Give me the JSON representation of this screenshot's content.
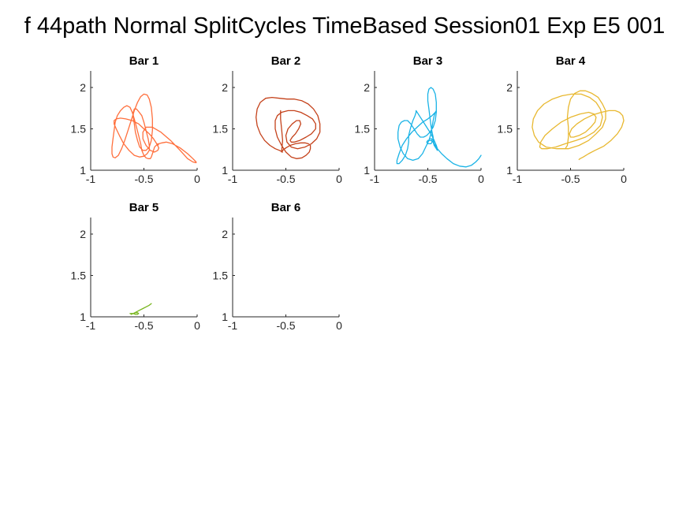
{
  "figure": {
    "title": "f 44path Normal SplitCycles TimeBased Session01 Exp E5 001"
  },
  "chart_data": [
    {
      "type": "line",
      "title": "Bar 1",
      "color": "#ff6f3c",
      "xlim": [
        -1,
        0
      ],
      "ylim": [
        1,
        2.2
      ],
      "xticks": [
        "-1",
        "-0.5",
        "0"
      ],
      "yticks": [
        "1",
        "1.5",
        "2"
      ],
      "grid": false,
      "x": [
        -0.37,
        -0.4,
        -0.41,
        -0.42,
        -0.43,
        -0.44,
        -0.46,
        -0.48,
        -0.5,
        -0.52,
        -0.53,
        -0.55,
        -0.57,
        -0.59,
        -0.61,
        -0.63,
        -0.66,
        -0.69,
        -0.72,
        -0.75,
        -0.77,
        -0.78,
        -0.79,
        -0.8,
        -0.8,
        -0.79,
        -0.77,
        -0.74,
        -0.71,
        -0.68,
        -0.65,
        -0.62,
        -0.59,
        -0.56,
        -0.53,
        -0.5,
        -0.47,
        -0.45,
        -0.43,
        -0.42,
        -0.42,
        -0.43,
        -0.45,
        -0.48,
        -0.51,
        -0.54,
        -0.56,
        -0.58,
        -0.59,
        -0.6,
        -0.6,
        -0.59,
        -0.57,
        -0.55,
        -0.52,
        -0.5,
        -0.48,
        -0.46,
        -0.45,
        -0.45,
        -0.47,
        -0.5,
        -0.54,
        -0.59,
        -0.64,
        -0.69,
        -0.73,
        -0.76,
        -0.78,
        -0.78,
        -0.76,
        -0.72,
        -0.67,
        -0.61,
        -0.55,
        -0.5,
        -0.45,
        -0.41,
        -0.38,
        -0.36,
        -0.37,
        -0.4,
        -0.44,
        -0.48,
        -0.51,
        -0.51,
        -0.48,
        -0.42,
        -0.34,
        -0.25,
        -0.16,
        -0.09,
        -0.04,
        -0.01,
        -0.01,
        -0.04,
        -0.09,
        -0.16,
        -0.23,
        -0.29,
        -0.33,
        -0.36,
        -0.37
      ],
      "y": [
        1.32,
        1.28,
        1.24,
        1.2,
        1.16,
        1.14,
        1.14,
        1.15,
        1.18,
        1.24,
        1.32,
        1.42,
        1.52,
        1.62,
        1.7,
        1.76,
        1.78,
        1.76,
        1.72,
        1.66,
        1.58,
        1.48,
        1.38,
        1.28,
        1.2,
        1.16,
        1.15,
        1.18,
        1.26,
        1.36,
        1.48,
        1.6,
        1.72,
        1.82,
        1.89,
        1.92,
        1.91,
        1.86,
        1.76,
        1.62,
        1.48,
        1.36,
        1.28,
        1.24,
        1.24,
        1.28,
        1.36,
        1.46,
        1.56,
        1.64,
        1.7,
        1.74,
        1.74,
        1.71,
        1.66,
        1.58,
        1.48,
        1.38,
        1.3,
        1.24,
        1.2,
        1.17,
        1.16,
        1.18,
        1.24,
        1.32,
        1.42,
        1.5,
        1.56,
        1.6,
        1.62,
        1.63,
        1.62,
        1.6,
        1.56,
        1.5,
        1.44,
        1.38,
        1.32,
        1.27,
        1.24,
        1.22,
        1.24,
        1.3,
        1.38,
        1.46,
        1.52,
        1.52,
        1.46,
        1.36,
        1.24,
        1.14,
        1.1,
        1.09,
        1.1,
        1.14,
        1.2,
        1.27,
        1.32,
        1.34,
        1.33,
        1.32,
        1.3
      ]
    },
    {
      "type": "line",
      "title": "Bar 2",
      "color": "#c4411a",
      "xlim": [
        -1,
        0
      ],
      "ylim": [
        1,
        2.2
      ],
      "xticks": [
        "-1",
        "-0.5",
        "0"
      ],
      "yticks": [
        "1",
        "1.5",
        "2"
      ],
      "grid": false,
      "x": [
        -0.53,
        -0.56,
        -0.6,
        -0.65,
        -0.7,
        -0.74,
        -0.77,
        -0.78,
        -0.77,
        -0.74,
        -0.69,
        -0.63,
        -0.56,
        -0.49,
        -0.42,
        -0.35,
        -0.29,
        -0.24,
        -0.2,
        -0.18,
        -0.18,
        -0.21,
        -0.26,
        -0.32,
        -0.39,
        -0.45,
        -0.49,
        -0.5,
        -0.48,
        -0.44,
        -0.4,
        -0.37,
        -0.36,
        -0.38,
        -0.41,
        -0.44,
        -0.46,
        -0.45,
        -0.42,
        -0.37,
        -0.31,
        -0.26,
        -0.22,
        -0.22,
        -0.25,
        -0.3,
        -0.36,
        -0.42,
        -0.48,
        -0.54,
        -0.58,
        -0.6,
        -0.6,
        -0.58,
        -0.54,
        -0.5,
        -0.45,
        -0.4,
        -0.35,
        -0.31,
        -0.28,
        -0.27,
        -0.27,
        -0.29,
        -0.32,
        -0.36,
        -0.41,
        -0.46,
        -0.5,
        -0.53,
        -0.54,
        -0.54,
        -0.53,
        -0.54,
        -0.55,
        -0.55
      ],
      "y": [
        1.22,
        1.24,
        1.26,
        1.3,
        1.36,
        1.44,
        1.54,
        1.64,
        1.74,
        1.82,
        1.87,
        1.88,
        1.87,
        1.86,
        1.86,
        1.84,
        1.8,
        1.74,
        1.66,
        1.56,
        1.46,
        1.38,
        1.32,
        1.28,
        1.26,
        1.28,
        1.34,
        1.42,
        1.5,
        1.56,
        1.6,
        1.6,
        1.56,
        1.5,
        1.44,
        1.4,
        1.36,
        1.34,
        1.34,
        1.36,
        1.4,
        1.44,
        1.5,
        1.56,
        1.62,
        1.66,
        1.7,
        1.72,
        1.72,
        1.7,
        1.66,
        1.6,
        1.5,
        1.4,
        1.3,
        1.22,
        1.16,
        1.14,
        1.15,
        1.18,
        1.22,
        1.26,
        1.3,
        1.32,
        1.33,
        1.33,
        1.32,
        1.3,
        1.27,
        1.24,
        1.22,
        1.22,
        1.36,
        1.5,
        1.62,
        1.72
      ]
    },
    {
      "type": "line",
      "title": "Bar 3",
      "color": "#1ab3e6",
      "xlim": [
        -1,
        0
      ],
      "ylim": [
        1,
        2.2
      ],
      "xticks": [
        "-1",
        "-0.5",
        "0"
      ],
      "yticks": [
        "1",
        "1.5",
        "2"
      ],
      "grid": false,
      "x": [
        0,
        -0.02,
        -0.05,
        -0.09,
        -0.14,
        -0.2,
        -0.26,
        -0.32,
        -0.37,
        -0.41,
        -0.44,
        -0.45,
        -0.45,
        -0.46,
        -0.47,
        -0.48,
        -0.49,
        -0.5,
        -0.5,
        -0.49,
        -0.47,
        -0.45,
        -0.43,
        -0.42,
        -0.42,
        -0.43,
        -0.45,
        -0.48,
        -0.51,
        -0.54,
        -0.57,
        -0.6,
        -0.63,
        -0.66,
        -0.69,
        -0.72,
        -0.75,
        -0.77,
        -0.78,
        -0.78,
        -0.76,
        -0.73,
        -0.69,
        -0.64,
        -0.59,
        -0.55,
        -0.52,
        -0.49,
        -0.47,
        -0.46,
        -0.45,
        -0.44,
        -0.43,
        -0.42,
        -0.42,
        -0.43,
        -0.46,
        -0.5,
        -0.55,
        -0.6,
        -0.65,
        -0.7,
        -0.74,
        -0.77,
        -0.79,
        -0.79,
        -0.77,
        -0.74,
        -0.71,
        -0.69,
        -0.68,
        -0.68,
        -0.66,
        -0.64,
        -0.62,
        -0.61,
        -0.61,
        -0.61,
        -0.6,
        -0.58,
        -0.55,
        -0.51,
        -0.47,
        -0.44,
        -0.42,
        -0.41,
        -0.41,
        -0.42,
        -0.44,
        -0.45,
        -0.47,
        -0.5,
        -0.51,
        -0.5,
        -0.47,
        -0.46,
        -0.46,
        -0.48
      ],
      "y": [
        1.18,
        1.14,
        1.1,
        1.06,
        1.04,
        1.05,
        1.08,
        1.14,
        1.2,
        1.26,
        1.32,
        1.36,
        1.4,
        1.46,
        1.54,
        1.64,
        1.74,
        1.84,
        1.92,
        1.98,
        2,
        1.98,
        1.92,
        1.82,
        1.7,
        1.6,
        1.52,
        1.46,
        1.42,
        1.4,
        1.4,
        1.44,
        1.5,
        1.56,
        1.6,
        1.6,
        1.58,
        1.54,
        1.46,
        1.38,
        1.28,
        1.2,
        1.14,
        1.12,
        1.14,
        1.2,
        1.28,
        1.36,
        1.44,
        1.52,
        1.6,
        1.66,
        1.7,
        1.72,
        1.72,
        1.7,
        1.66,
        1.62,
        1.58,
        1.52,
        1.46,
        1.38,
        1.3,
        1.2,
        1.12,
        1.08,
        1.08,
        1.12,
        1.18,
        1.26,
        1.34,
        1.42,
        1.52,
        1.6,
        1.66,
        1.7,
        1.72,
        1.72,
        1.7,
        1.66,
        1.6,
        1.52,
        1.44,
        1.36,
        1.3,
        1.26,
        1.24,
        1.26,
        1.3,
        1.34,
        1.36,
        1.36,
        1.34,
        1.32,
        1.32,
        1.34,
        1.38,
        1.38
      ]
    },
    {
      "type": "line",
      "title": "Bar 4",
      "color": "#e8b830",
      "xlim": [
        -1,
        0
      ],
      "ylim": [
        1,
        2.2
      ],
      "xticks": [
        "-1",
        "-0.5",
        "0"
      ],
      "yticks": [
        "1",
        "1.5",
        "2"
      ],
      "grid": false,
      "x": [
        -0.55,
        -0.53,
        -0.52,
        -0.52,
        -0.53,
        -0.52,
        -0.5,
        -0.46,
        -0.41,
        -0.36,
        -0.3,
        -0.24,
        -0.2,
        -0.17,
        -0.17,
        -0.2,
        -0.26,
        -0.33,
        -0.42,
        -0.52,
        -0.63,
        -0.73,
        -0.8,
        -0.84,
        -0.86,
        -0.85,
        -0.81,
        -0.75,
        -0.67,
        -0.58,
        -0.49,
        -0.4,
        -0.32,
        -0.26,
        -0.22,
        -0.2,
        -0.22,
        -0.28,
        -0.36,
        -0.45,
        -0.55,
        -0.64,
        -0.72,
        -0.77,
        -0.79,
        -0.78,
        -0.74,
        -0.67,
        -0.59,
        -0.5,
        -0.41,
        -0.33,
        -0.28,
        -0.26,
        -0.27,
        -0.31,
        -0.36,
        -0.42,
        -0.47,
        -0.5,
        -0.51,
        -0.49,
        -0.44,
        -0.37,
        -0.29,
        -0.21,
        -0.14,
        -0.08,
        -0.04,
        -0.01,
        0,
        -0.02,
        -0.06,
        -0.12,
        -0.19,
        -0.27,
        -0.33,
        -0.38,
        -0.41,
        -0.42,
        -0.42
      ],
      "y": [
        1.26,
        1.3,
        1.4,
        1.52,
        1.64,
        1.76,
        1.86,
        1.93,
        1.96,
        1.96,
        1.93,
        1.88,
        1.8,
        1.72,
        1.62,
        1.52,
        1.44,
        1.36,
        1.3,
        1.26,
        1.26,
        1.28,
        1.34,
        1.42,
        1.52,
        1.62,
        1.72,
        1.8,
        1.86,
        1.9,
        1.92,
        1.92,
        1.88,
        1.82,
        1.74,
        1.64,
        1.54,
        1.46,
        1.4,
        1.36,
        1.32,
        1.28,
        1.26,
        1.26,
        1.28,
        1.34,
        1.42,
        1.5,
        1.58,
        1.64,
        1.68,
        1.7,
        1.68,
        1.64,
        1.58,
        1.52,
        1.46,
        1.42,
        1.4,
        1.4,
        1.44,
        1.5,
        1.56,
        1.62,
        1.67,
        1.7,
        1.72,
        1.72,
        1.7,
        1.66,
        1.6,
        1.52,
        1.44,
        1.36,
        1.29,
        1.24,
        1.2,
        1.16,
        1.14,
        1.13,
        1.13
      ]
    },
    {
      "type": "line",
      "title": "Bar 5",
      "color": "#78b51e",
      "xlim": [
        -1,
        0
      ],
      "ylim": [
        1,
        2.2
      ],
      "xticks": [
        "-1",
        "-0.5",
        "0"
      ],
      "yticks": [
        "1",
        "1.5",
        "2"
      ],
      "grid": false,
      "x": [
        -0.63,
        -0.6,
        -0.58,
        -0.56,
        -0.55,
        -0.56,
        -0.58,
        -0.6,
        -0.62,
        -0.62,
        -0.6,
        -0.57,
        -0.54,
        -0.51,
        -0.48,
        -0.45,
        -0.43
      ],
      "y": [
        1.04,
        1.04,
        1.05,
        1.05,
        1.04,
        1.03,
        1.03,
        1.04,
        1.04,
        1.03,
        1.04,
        1.06,
        1.08,
        1.1,
        1.12,
        1.14,
        1.16
      ]
    },
    {
      "type": "line",
      "title": "Bar 6",
      "color": "#808080",
      "xlim": [
        -1,
        0
      ],
      "ylim": [
        1,
        2.2
      ],
      "xticks": [
        "-1",
        "-0.5",
        "0"
      ],
      "yticks": [
        "1",
        "1.5",
        "2"
      ],
      "grid": false,
      "x": [],
      "y": []
    }
  ]
}
